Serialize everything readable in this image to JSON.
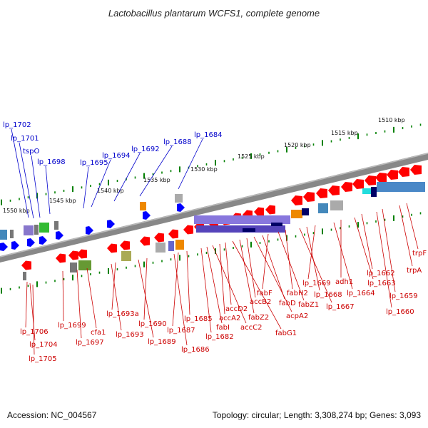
{
  "title": "Lactobacillus plantarum WCFS1, complete genome",
  "accession": "Accession: NC_004567",
  "summary": "Topology: circular; Length: 3,308,274 bp; Genes: 3,093",
  "colors": {
    "forward_label": "#0000cc",
    "reverse_label": "#cc0000",
    "forward_gene": "#0000ff",
    "reverse_gene": "#ff0000",
    "backbone": "#888888",
    "tick": "#008000"
  },
  "kbp_labels": [
    "1510 kbp",
    "1515 kbp",
    "1520 kbp",
    "1525 kbp",
    "1530 kbp",
    "1535 kbp",
    "1540 kbp",
    "1545 kbp",
    "1550 kbp"
  ],
  "forward_labels": [
    "lp_1702",
    "lp_1701",
    "tspO",
    "lp_1698",
    "lp_1695",
    "lp_1694",
    "lp_1692",
    "lp_1688",
    "lp_1684"
  ],
  "reverse_labels": [
    "trpF",
    "trpA",
    "lp_1659",
    "lp_1660",
    "lp_1662",
    "lp_1663",
    "adh1",
    "lp_1664",
    "lp_1669",
    "lp_1668",
    "lp_1667",
    "fabH2",
    "fabZ1",
    "fabF",
    "fabD",
    "acpA2",
    "accB2",
    "fabZ2",
    "fabG1",
    "accD2",
    "accA2",
    "accC2",
    "fabI",
    "lp_1682",
    "lp_1685",
    "lp_1687",
    "lp_1686",
    "lp_1690",
    "lp_1689",
    "lp_1693a",
    "lp_1693",
    "cfa1",
    "lp_1697",
    "lp_1699",
    "lp_1706",
    "lp_1704",
    "lp_1705"
  ]
}
